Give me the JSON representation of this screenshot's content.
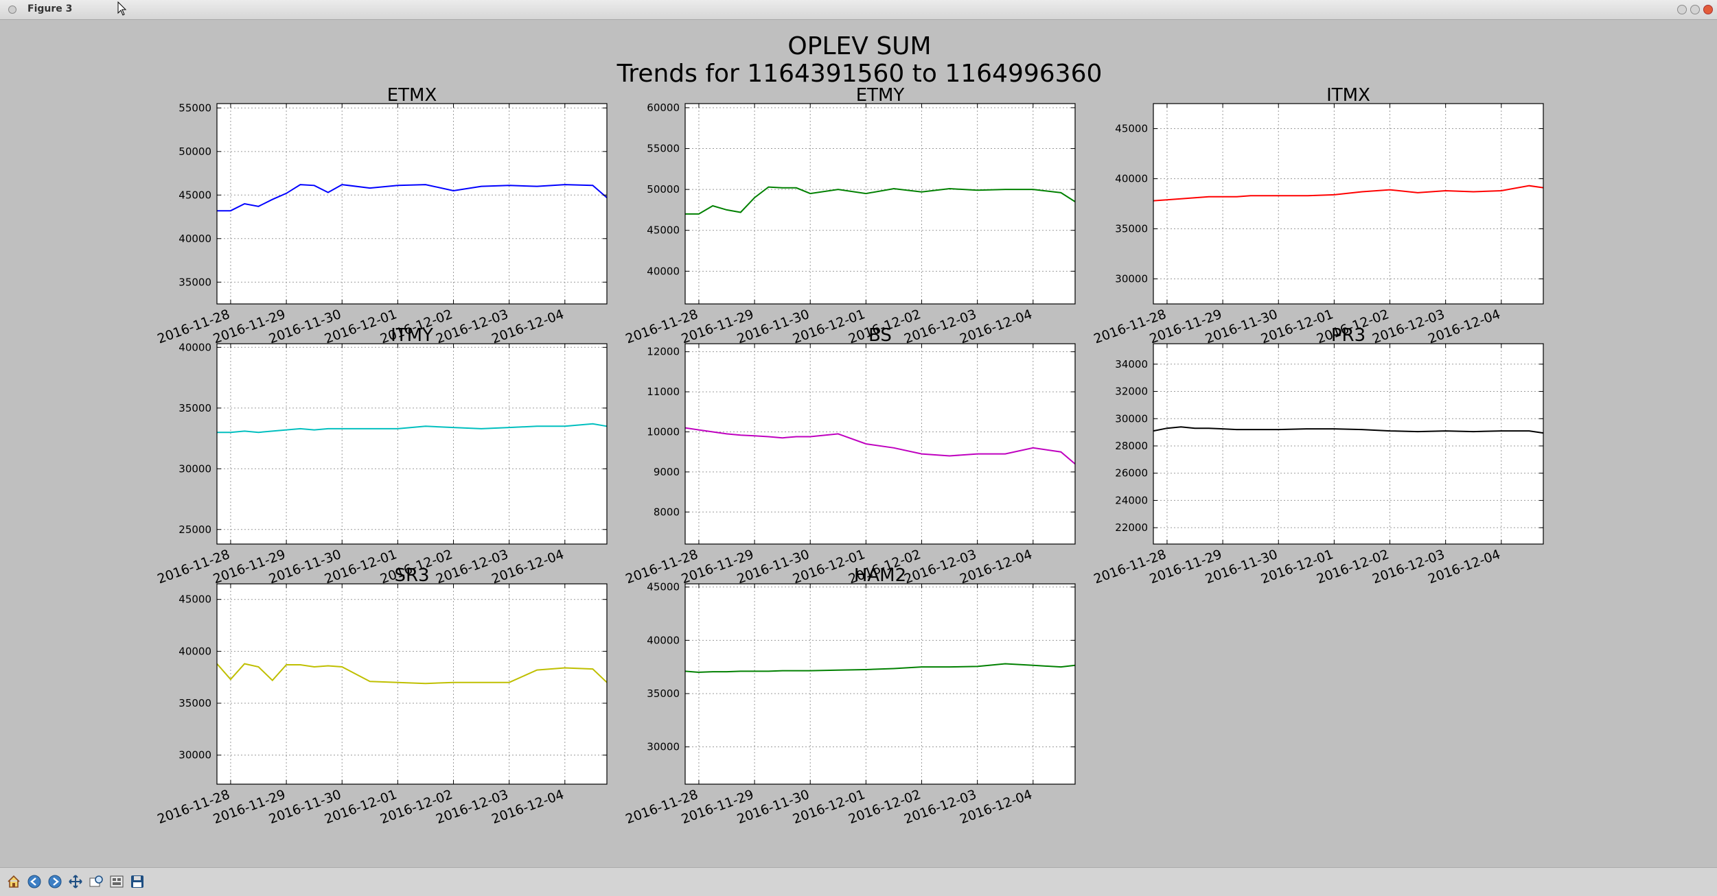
{
  "window": {
    "title": "Figure 3"
  },
  "figure": {
    "title_line1": "OPLEV SUM",
    "title_line2": "Trends for 1164391560 to 1164996360"
  },
  "toolbar": {
    "icons": [
      "home-icon",
      "back-icon",
      "forward-icon",
      "pan-icon",
      "zoom-icon",
      "subplots-icon",
      "save-icon"
    ]
  },
  "colors": {
    "ETMX": "#0000ff",
    "ETMY": "#008000",
    "ITMX": "#ff0000",
    "ITMY": "#00bfbf",
    "BS": "#bf00bf",
    "PR3": "#000000",
    "SR3": "#bfbf00",
    "HAM2": "#008000",
    "background": "#bfbfbf"
  },
  "chart_data": [
    {
      "type": "line",
      "title": "ETMX",
      "color": "#0000ff",
      "xlim": [
        "2016-11-27 18:06",
        "2016-12-04 18:06"
      ],
      "xticks": [
        "2016-11-28",
        "2016-11-29",
        "2016-11-30",
        "2016-12-01",
        "2016-12-02",
        "2016-12-03",
        "2016-12-04"
      ],
      "ylim": [
        32500,
        55500
      ],
      "yticks": [
        35000,
        40000,
        45000,
        50000,
        55000
      ],
      "grid": true,
      "series": [
        {
          "x": [
            "2016-11-27 18:06",
            "2016-11-28 00:00",
            "2016-11-28 06:00",
            "2016-11-28 12:00",
            "2016-11-28 18:00",
            "2016-11-29 00:00",
            "2016-11-29 06:00",
            "2016-11-29 12:00",
            "2016-11-29 18:00",
            "2016-11-30 00:00",
            "2016-11-30 12:00",
            "2016-12-01 00:00",
            "2016-12-01 12:00",
            "2016-12-02 00:00",
            "2016-12-02 12:00",
            "2016-12-03 00:00",
            "2016-12-03 12:00",
            "2016-12-04 00:00",
            "2016-12-04 12:00",
            "2016-12-04 18:06"
          ],
          "y": [
            43200,
            43200,
            44000,
            43700,
            44500,
            45200,
            46200,
            46100,
            45300,
            46200,
            45800,
            46100,
            46200,
            45500,
            46000,
            46100,
            46000,
            46200,
            46100,
            44700
          ]
        }
      ]
    },
    {
      "type": "line",
      "title": "ETMY",
      "color": "#008000",
      "xlim": [
        "2016-11-27 18:06",
        "2016-12-04 18:06"
      ],
      "xticks": [
        "2016-11-28",
        "2016-11-29",
        "2016-11-30",
        "2016-12-01",
        "2016-12-02",
        "2016-12-03",
        "2016-12-04"
      ],
      "ylim": [
        36000,
        60500
      ],
      "yticks": [
        40000,
        45000,
        50000,
        55000,
        60000
      ],
      "grid": true,
      "series": [
        {
          "x": [
            "2016-11-27 18:06",
            "2016-11-28 00:00",
            "2016-11-28 06:00",
            "2016-11-28 12:00",
            "2016-11-28 18:00",
            "2016-11-29 00:00",
            "2016-11-29 06:00",
            "2016-11-29 12:00",
            "2016-11-29 18:00",
            "2016-11-30 00:00",
            "2016-11-30 12:00",
            "2016-12-01 00:00",
            "2016-12-01 12:00",
            "2016-12-02 00:00",
            "2016-12-02 12:00",
            "2016-12-03 00:00",
            "2016-12-03 12:00",
            "2016-12-04 00:00",
            "2016-12-04 12:00",
            "2016-12-04 18:06"
          ],
          "y": [
            47000,
            47000,
            48000,
            47500,
            47200,
            49000,
            50300,
            50200,
            50200,
            49500,
            50000,
            49500,
            50100,
            49700,
            50100,
            49900,
            50000,
            50000,
            49600,
            48500
          ]
        }
      ]
    },
    {
      "type": "line",
      "title": "ITMX",
      "color": "#ff0000",
      "xlim": [
        "2016-11-27 18:06",
        "2016-12-04 18:06"
      ],
      "xticks": [
        "2016-11-28",
        "2016-11-29",
        "2016-11-30",
        "2016-12-01",
        "2016-12-02",
        "2016-12-03",
        "2016-12-04"
      ],
      "ylim": [
        27500,
        47500
      ],
      "yticks": [
        30000,
        35000,
        40000,
        45000
      ],
      "grid": true,
      "series": [
        {
          "x": [
            "2016-11-27 18:06",
            "2016-11-28 00:00",
            "2016-11-28 06:00",
            "2016-11-28 12:00",
            "2016-11-28 18:00",
            "2016-11-29 00:00",
            "2016-11-29 06:00",
            "2016-11-29 12:00",
            "2016-11-29 18:00",
            "2016-11-30 00:00",
            "2016-11-30 12:00",
            "2016-12-01 00:00",
            "2016-12-01 12:00",
            "2016-12-02 00:00",
            "2016-12-02 12:00",
            "2016-12-03 00:00",
            "2016-12-03 12:00",
            "2016-12-04 00:00",
            "2016-12-04 12:00",
            "2016-12-04 18:06"
          ],
          "y": [
            37800,
            37900,
            38000,
            38100,
            38200,
            38200,
            38200,
            38300,
            38300,
            38300,
            38300,
            38400,
            38700,
            38900,
            38600,
            38800,
            38700,
            38800,
            39300,
            39100
          ]
        }
      ]
    },
    {
      "type": "line",
      "title": "ITMY",
      "color": "#00bfbf",
      "xlim": [
        "2016-11-27 18:06",
        "2016-12-04 18:06"
      ],
      "xticks": [
        "2016-11-28",
        "2016-11-29",
        "2016-11-30",
        "2016-12-01",
        "2016-12-02",
        "2016-12-03",
        "2016-12-04"
      ],
      "ylim": [
        23800,
        40300
      ],
      "yticks": [
        25000,
        30000,
        35000,
        40000
      ],
      "grid": true,
      "series": [
        {
          "x": [
            "2016-11-27 18:06",
            "2016-11-28 00:00",
            "2016-11-28 06:00",
            "2016-11-28 12:00",
            "2016-11-28 18:00",
            "2016-11-29 00:00",
            "2016-11-29 06:00",
            "2016-11-29 12:00",
            "2016-11-29 18:00",
            "2016-11-30 00:00",
            "2016-11-30 12:00",
            "2016-12-01 00:00",
            "2016-12-01 12:00",
            "2016-12-02 00:00",
            "2016-12-02 12:00",
            "2016-12-03 00:00",
            "2016-12-03 12:00",
            "2016-12-04 00:00",
            "2016-12-04 12:00",
            "2016-12-04 18:06"
          ],
          "y": [
            33000,
            33000,
            33100,
            33000,
            33100,
            33200,
            33300,
            33200,
            33300,
            33300,
            33300,
            33300,
            33500,
            33400,
            33300,
            33400,
            33500,
            33500,
            33700,
            33500
          ]
        }
      ]
    },
    {
      "type": "line",
      "title": "BS",
      "color": "#bf00bf",
      "xlim": [
        "2016-11-27 18:06",
        "2016-12-04 18:06"
      ],
      "xticks": [
        "2016-11-28",
        "2016-11-29",
        "2016-11-30",
        "2016-12-01",
        "2016-12-02",
        "2016-12-03",
        "2016-12-04"
      ],
      "ylim": [
        7200,
        12200
      ],
      "yticks": [
        8000,
        9000,
        10000,
        11000,
        12000
      ],
      "grid": true,
      "series": [
        {
          "x": [
            "2016-11-27 18:06",
            "2016-11-28 00:00",
            "2016-11-28 06:00",
            "2016-11-28 12:00",
            "2016-11-28 18:00",
            "2016-11-29 00:00",
            "2016-11-29 06:00",
            "2016-11-29 12:00",
            "2016-11-29 18:00",
            "2016-11-30 00:00",
            "2016-11-30 12:00",
            "2016-12-01 00:00",
            "2016-12-01 12:00",
            "2016-12-02 00:00",
            "2016-12-02 12:00",
            "2016-12-03 00:00",
            "2016-12-03 12:00",
            "2016-12-04 00:00",
            "2016-12-04 12:00",
            "2016-12-04 18:06"
          ],
          "y": [
            10100,
            10050,
            10000,
            9950,
            9920,
            9900,
            9880,
            9850,
            9880,
            9880,
            9950,
            9700,
            9600,
            9450,
            9400,
            9450,
            9450,
            9600,
            9500,
            9200
          ]
        }
      ]
    },
    {
      "type": "line",
      "title": "PR3",
      "color": "#000000",
      "xlim": [
        "2016-11-27 18:06",
        "2016-12-04 18:06"
      ],
      "xticks": [
        "2016-11-28",
        "2016-11-29",
        "2016-11-30",
        "2016-12-01",
        "2016-12-02",
        "2016-12-03",
        "2016-12-04"
      ],
      "ylim": [
        20800,
        35500
      ],
      "yticks": [
        22000,
        24000,
        26000,
        28000,
        30000,
        32000,
        34000
      ],
      "grid": true,
      "series": [
        {
          "x": [
            "2016-11-27 18:06",
            "2016-11-28 00:00",
            "2016-11-28 06:00",
            "2016-11-28 12:00",
            "2016-11-28 18:00",
            "2016-11-29 00:00",
            "2016-11-29 06:00",
            "2016-11-29 12:00",
            "2016-11-29 18:00",
            "2016-11-30 00:00",
            "2016-11-30 12:00",
            "2016-12-01 00:00",
            "2016-12-01 12:00",
            "2016-12-02 00:00",
            "2016-12-02 12:00",
            "2016-12-03 00:00",
            "2016-12-03 12:00",
            "2016-12-04 00:00",
            "2016-12-04 12:00",
            "2016-12-04 18:06"
          ],
          "y": [
            29100,
            29300,
            29400,
            29300,
            29300,
            29250,
            29200,
            29200,
            29200,
            29200,
            29250,
            29250,
            29200,
            29100,
            29050,
            29100,
            29050,
            29100,
            29100,
            28950
          ]
        }
      ]
    },
    {
      "type": "line",
      "title": "SR3",
      "color": "#bfbf00",
      "xlim": [
        "2016-11-27 18:06",
        "2016-12-04 18:06"
      ],
      "xticks": [
        "2016-11-28",
        "2016-11-29",
        "2016-11-30",
        "2016-12-01",
        "2016-12-02",
        "2016-12-03",
        "2016-12-04"
      ],
      "ylim": [
        27200,
        46500
      ],
      "yticks": [
        30000,
        35000,
        40000,
        45000
      ],
      "grid": true,
      "series": [
        {
          "x": [
            "2016-11-27 18:06",
            "2016-11-28 00:00",
            "2016-11-28 06:00",
            "2016-11-28 12:00",
            "2016-11-28 18:00",
            "2016-11-29 00:00",
            "2016-11-29 06:00",
            "2016-11-29 12:00",
            "2016-11-29 18:00",
            "2016-11-30 00:00",
            "2016-11-30 12:00",
            "2016-12-01 00:00",
            "2016-12-01 12:00",
            "2016-12-02 00:00",
            "2016-12-02 12:00",
            "2016-12-03 00:00",
            "2016-12-03 12:00",
            "2016-12-04 00:00",
            "2016-12-04 12:00",
            "2016-12-04 18:06"
          ],
          "y": [
            38800,
            37300,
            38800,
            38500,
            37200,
            38700,
            38700,
            38500,
            38600,
            38500,
            37100,
            37000,
            36900,
            37000,
            37000,
            37000,
            38200,
            38400,
            38300,
            37000
          ]
        }
      ]
    },
    {
      "type": "line",
      "title": "HAM2",
      "color": "#008000",
      "xlim": [
        "2016-11-27 18:06",
        "2016-12-04 18:06"
      ],
      "xticks": [
        "2016-11-28",
        "2016-11-29",
        "2016-11-30",
        "2016-12-01",
        "2016-12-02",
        "2016-12-03",
        "2016-12-04"
      ],
      "ylim": [
        26500,
        45300
      ],
      "yticks": [
        30000,
        35000,
        40000,
        45000
      ],
      "grid": true,
      "series": [
        {
          "x": [
            "2016-11-27 18:06",
            "2016-11-28 00:00",
            "2016-11-28 06:00",
            "2016-11-28 12:00",
            "2016-11-28 18:00",
            "2016-11-29 00:00",
            "2016-11-29 06:00",
            "2016-11-29 12:00",
            "2016-11-29 18:00",
            "2016-11-30 00:00",
            "2016-11-30 12:00",
            "2016-12-01 00:00",
            "2016-12-01 12:00",
            "2016-12-02 00:00",
            "2016-12-02 12:00",
            "2016-12-03 00:00",
            "2016-12-03 12:00",
            "2016-12-04 00:00",
            "2016-12-04 12:00",
            "2016-12-04 18:06"
          ],
          "y": [
            37100,
            37000,
            37050,
            37050,
            37100,
            37100,
            37100,
            37150,
            37150,
            37150,
            37200,
            37250,
            37350,
            37500,
            37500,
            37550,
            37800,
            37650,
            37500,
            37650
          ]
        }
      ]
    }
  ]
}
